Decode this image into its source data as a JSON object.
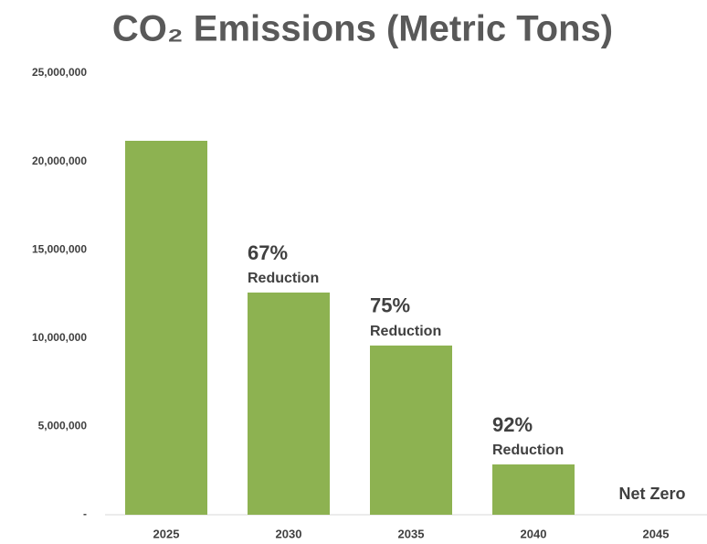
{
  "chart_data": {
    "type": "bar",
    "title": "CO₂ Emissions (Metric Tons)",
    "categories": [
      "2025",
      "2030",
      "2035",
      "2040",
      "2045"
    ],
    "values": [
      21170000,
      12580000,
      9580000,
      2850000,
      0
    ],
    "color": "#8db251",
    "ylim": [
      0,
      25000000
    ],
    "yticks": [
      {
        "value": 0,
        "label": "-"
      },
      {
        "value": 5000000,
        "label": "5,000,000"
      },
      {
        "value": 10000000,
        "label": "10,000,000"
      },
      {
        "value": 15000000,
        "label": "15,000,000"
      },
      {
        "value": 20000000,
        "label": "20,000,000"
      },
      {
        "value": 25000000,
        "label": "25,000,000"
      }
    ],
    "grid": false,
    "annotations": [
      {
        "category": "2030",
        "text": "67%",
        "subtext": "Reduction"
      },
      {
        "category": "2035",
        "text": "75%",
        "subtext": "Reduction"
      },
      {
        "category": "2040",
        "text": "92%",
        "subtext": "Reduction"
      },
      {
        "category": "2045",
        "text": "Net Zero"
      }
    ]
  }
}
